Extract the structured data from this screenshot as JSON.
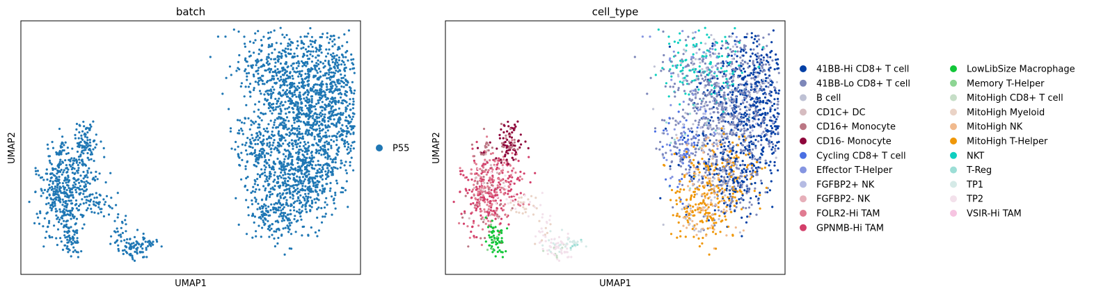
{
  "chart_data": [
    {
      "type": "scatter",
      "title": "batch",
      "xlabel": "UMAP1",
      "ylabel": "UMAP2",
      "grid": false,
      "ticks": "none",
      "legend_position": "right",
      "legend": [
        {
          "name": "P55",
          "color": "#1f77b4"
        }
      ]
    },
    {
      "type": "scatter",
      "title": "cell_type",
      "xlabel": "UMAP1",
      "ylabel": "UMAP2",
      "grid": false,
      "ticks": "none",
      "legend_position": "right",
      "legend": [
        {
          "name": "41BB-Hi CD8+ T cell",
          "color": "#023fa5"
        },
        {
          "name": "41BB-Lo CD8+ T cell",
          "color": "#7d87b9"
        },
        {
          "name": "B cell",
          "color": "#bec1d4"
        },
        {
          "name": "CD1C+ DC",
          "color": "#d6bcc0"
        },
        {
          "name": "CD16+ Monocyte",
          "color": "#bb7784"
        },
        {
          "name": "CD16- Monocyte",
          "color": "#8e063b"
        },
        {
          "name": "Cycling CD8+ T cell",
          "color": "#4a6fe3"
        },
        {
          "name": "Effector T-Helper",
          "color": "#8595e1"
        },
        {
          "name": "FGFBP2+ NK",
          "color": "#b5bbe3"
        },
        {
          "name": "FGFBP2- NK",
          "color": "#e6afb9"
        },
        {
          "name": "FOLR2-Hi TAM",
          "color": "#e07b91"
        },
        {
          "name": "GPNMB-Hi TAM",
          "color": "#d33f6a"
        },
        {
          "name": "LowLibSize Macrophage",
          "color": "#11c638"
        },
        {
          "name": "Memory T-Helper",
          "color": "#8dd593"
        },
        {
          "name": "MitoHigh CD8+ T cell",
          "color": "#c6dec7"
        },
        {
          "name": "MitoHigh Myeloid",
          "color": "#ead3c6"
        },
        {
          "name": "MitoHigh NK",
          "color": "#f0b98d"
        },
        {
          "name": "MitoHigh T-Helper",
          "color": "#ef9708"
        },
        {
          "name": "NKT",
          "color": "#0fcfc0"
        },
        {
          "name": "T-Reg",
          "color": "#9cded6"
        },
        {
          "name": "TP1",
          "color": "#d5eae7"
        },
        {
          "name": "TP2",
          "color": "#f3e1eb"
        },
        {
          "name": "VSIR-Hi TAM",
          "color": "#f6c4e1"
        }
      ]
    }
  ]
}
